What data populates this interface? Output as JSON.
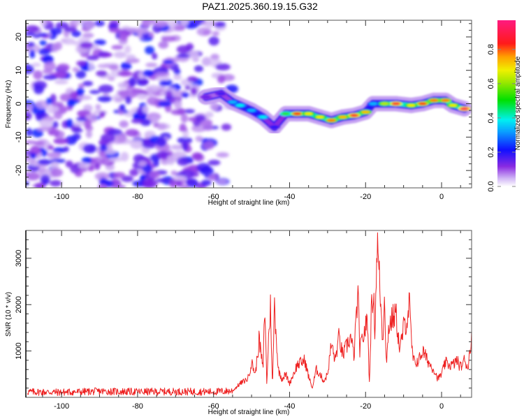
{
  "figure_title": "PAZ1.2025.360.19.15.G32",
  "chart_data": [
    {
      "type": "heatmap",
      "name": "spectrogram",
      "title": "PAZ1.2025.360.19.15.G32",
      "xlabel": "Height of straight line (km)",
      "ylabel": "Frequency (Hz)",
      "xlim": [
        -109.4,
        7.9
      ],
      "ylim": [
        -25.2,
        25
      ],
      "xticks": [
        -100,
        -80,
        -60,
        -40,
        -20,
        0
      ],
      "yticks": [
        -20,
        -10,
        0,
        10,
        20
      ],
      "grid": false,
      "noise_region_x": [
        -109.4,
        -53
      ],
      "noise_amplitude_range": [
        0.0,
        0.2
      ],
      "ridge": {
        "description": "Signal ridge of normalized spectral amplitude; noise-like blobs below about -55 km, coherent tone above",
        "points": [
          {
            "x": -62,
            "y": 2,
            "amp": 0.15
          },
          {
            "x": -58,
            "y": 3,
            "amp": 0.18
          },
          {
            "x": -55,
            "y": 0.5,
            "amp": 0.35
          },
          {
            "x": -53,
            "y": -0.5,
            "amp": 0.4
          },
          {
            "x": -50,
            "y": -2,
            "amp": 0.35
          },
          {
            "x": -47,
            "y": -4,
            "amp": 0.4
          },
          {
            "x": -44,
            "y": -7,
            "amp": 0.2
          },
          {
            "x": -41,
            "y": -3,
            "amp": 0.55
          },
          {
            "x": -38,
            "y": -3,
            "amp": 0.85
          },
          {
            "x": -35,
            "y": -3,
            "amp": 0.7
          },
          {
            "x": -32,
            "y": -4,
            "amp": 0.7
          },
          {
            "x": -29,
            "y": -5,
            "amp": 0.8
          },
          {
            "x": -26,
            "y": -4,
            "amp": 0.75
          },
          {
            "x": -23,
            "y": -3.5,
            "amp": 0.9
          },
          {
            "x": -20,
            "y": -2.5,
            "amp": 0.75
          },
          {
            "x": -18,
            "y": 0,
            "amp": 0.35
          },
          {
            "x": -15,
            "y": 0,
            "amp": 0.65
          },
          {
            "x": -12,
            "y": 0,
            "amp": 0.9
          },
          {
            "x": -8,
            "y": -0.5,
            "amp": 0.7
          },
          {
            "x": -5,
            "y": 0,
            "amp": 0.85
          },
          {
            "x": -2,
            "y": 1,
            "amp": 0.8
          },
          {
            "x": 1,
            "y": 1,
            "amp": 0.8
          },
          {
            "x": 3,
            "y": -0.5,
            "amp": 0.7
          },
          {
            "x": 6,
            "y": -1.5,
            "amp": 0.95
          }
        ]
      },
      "colorbar": {
        "label": "Normalized spectral amplitude",
        "range": [
          0.0,
          0.97
        ],
        "ticks": [
          0.0,
          0.2,
          0.4,
          0.6,
          0.8
        ],
        "tick_labels": [
          "0.0",
          "0.2",
          "0.4",
          "0.6",
          "0.8"
        ],
        "colormap": "rainbow (white-violet-blue-cyan-green-yellow-red-magenta)"
      }
    },
    {
      "type": "line",
      "name": "snr",
      "xlabel": "Height of straight line (km)",
      "ylabel": "SNR (10 * v/v)",
      "xlim": [
        -109.4,
        7.9
      ],
      "ylim": [
        0,
        3600
      ],
      "xticks": [
        -100,
        -80,
        -60,
        -40,
        -20,
        0
      ],
      "yticks": [
        1000,
        2000,
        3000
      ],
      "grid": false,
      "series": [
        {
          "name": "SNR",
          "color": "#ee2222",
          "x": [
            -109,
            -100,
            -90,
            -80,
            -70,
            -60,
            -55,
            -53,
            -51,
            -50,
            -49,
            -48,
            -47,
            -46.5,
            -46,
            -45.5,
            -45,
            -44.5,
            -44,
            -43,
            -42,
            -41,
            -40,
            -38,
            -36,
            -35,
            -34,
            -33,
            -32,
            -31,
            -30,
            -29,
            -28,
            -27,
            -26,
            -25,
            -24,
            -23,
            -22.5,
            -22,
            -21.5,
            -21,
            -20,
            -19.5,
            -19,
            -18.5,
            -18,
            -17.5,
            -17,
            -16.5,
            -16,
            -15.5,
            -15,
            -14.5,
            -14,
            -13,
            -12,
            -11,
            -10,
            -9,
            -8.5,
            -8,
            -7.5,
            -7,
            -6,
            -5,
            -4,
            -3,
            -2,
            -1,
            0,
            1,
            2,
            3,
            4,
            5,
            6,
            7,
            7.9
          ],
          "values": [
            120,
            110,
            130,
            120,
            125,
            120,
            140,
            300,
            400,
            750,
            500,
            1250,
            600,
            2000,
            300,
            1300,
            2000,
            150,
            2050,
            600,
            400,
            500,
            300,
            700,
            800,
            450,
            200,
            600,
            500,
            350,
            500,
            1150,
            800,
            1300,
            900,
            1100,
            1300,
            900,
            1700,
            2200,
            1000,
            1200,
            1500,
            1700,
            300,
            1800,
            2300,
            1400,
            3400,
            2800,
            2000,
            1200,
            2300,
            600,
            1500,
            1700,
            1800,
            1000,
            1500,
            1700,
            2050,
            1300,
            800,
            750,
            800,
            1000,
            850,
            700,
            600,
            400,
            500,
            750,
            700,
            700,
            800,
            650,
            800,
            650,
            1400
          ]
        }
      ]
    }
  ]
}
